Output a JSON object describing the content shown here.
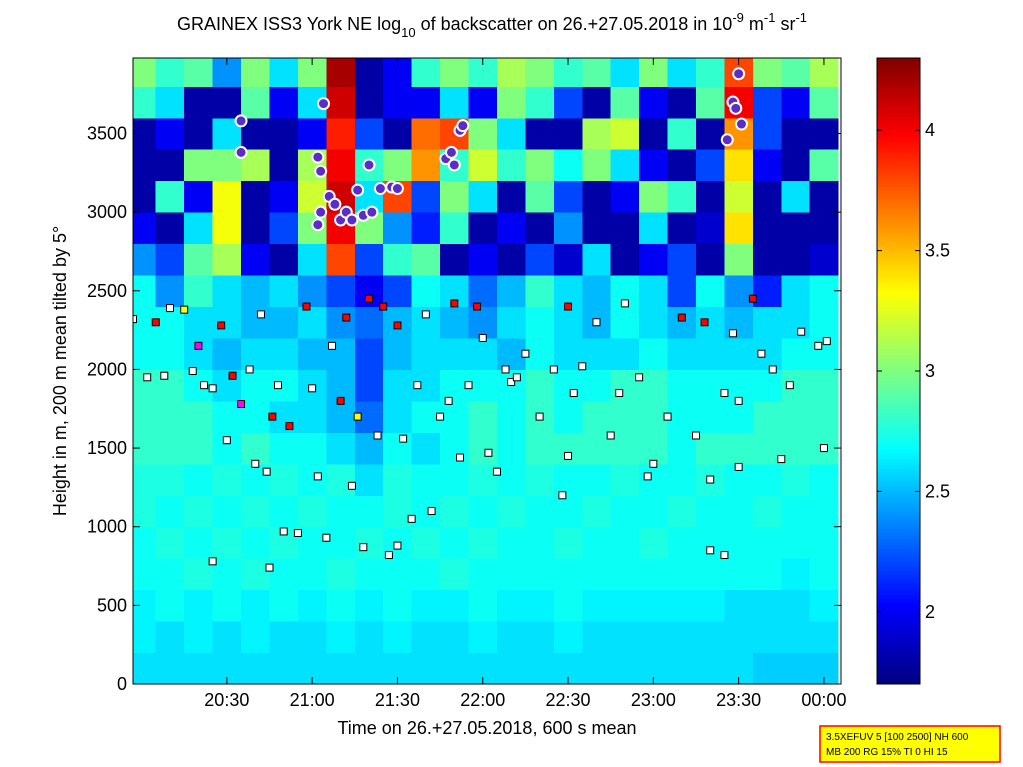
{
  "chart_data": {
    "type": "heatmap",
    "title_parts": [
      "GRAINEX ISS3 York NE log",
      "10",
      " of backscatter on 26.+27.05.2018 in 10",
      "-9",
      " m",
      "-1",
      " sr",
      "-1"
    ],
    "xlabel": "Time on 26.+27.05.2018, 600 s mean",
    "ylabel": "Height in m, 200 m mean tilted by 5°",
    "info": [
      "3.5XEFUV 5 [100 2500] NH 600",
      "MB 200 RG 15% TI 0 HI 15"
    ],
    "xlim": [
      -3,
      246
    ],
    "ylim": [
      0,
      3980
    ],
    "xticks": [
      {
        "value": 30,
        "label": "20:30"
      },
      {
        "value": 60,
        "label": "21:00"
      },
      {
        "value": 90,
        "label": "21:30"
      },
      {
        "value": 120,
        "label": "22:00"
      },
      {
        "value": 150,
        "label": "22:30"
      },
      {
        "value": 180,
        "label": "23:00"
      },
      {
        "value": 210,
        "label": "23:30"
      },
      {
        "value": 240,
        "label": "00:00"
      }
    ],
    "yticks": [
      0,
      500,
      1000,
      1500,
      2000,
      2500,
      3000,
      3500
    ],
    "clim": [
      1.7,
      4.3
    ],
    "cticks": [
      2,
      2.5,
      3,
      3.5,
      4
    ],
    "colormap": "jet",
    "x": [
      0,
      10,
      20,
      30,
      40,
      50,
      60,
      70,
      80,
      90,
      100,
      110,
      120,
      130,
      140,
      150,
      160,
      170,
      180,
      190,
      200,
      210,
      220,
      230,
      240
    ],
    "y": [
      100,
      300,
      500,
      700,
      900,
      1100,
      1300,
      1500,
      1700,
      1900,
      2100,
      2300,
      2500,
      2700,
      2900,
      3100,
      3300,
      3500,
      3700,
      3900
    ],
    "z": [
      [
        2.6,
        2.6,
        2.6,
        2.6,
        2.6,
        2.6,
        2.6,
        2.6,
        2.6,
        2.6,
        2.6,
        2.6,
        2.6,
        2.6,
        2.6,
        2.6,
        2.6,
        2.6,
        2.6,
        2.6,
        2.6,
        2.6,
        2.55,
        2.55,
        2.55
      ],
      [
        2.65,
        2.6,
        2.65,
        2.6,
        2.65,
        2.6,
        2.6,
        2.65,
        2.6,
        2.65,
        2.6,
        2.6,
        2.65,
        2.6,
        2.6,
        2.65,
        2.6,
        2.6,
        2.6,
        2.6,
        2.6,
        2.6,
        2.6,
        2.6,
        2.6
      ],
      [
        2.65,
        2.7,
        2.65,
        2.7,
        2.65,
        2.7,
        2.65,
        2.7,
        2.65,
        2.7,
        2.65,
        2.65,
        2.7,
        2.65,
        2.65,
        2.7,
        2.65,
        2.65,
        2.65,
        2.65,
        2.65,
        2.6,
        2.6,
        2.6,
        2.65
      ],
      [
        2.7,
        2.7,
        2.75,
        2.7,
        2.75,
        2.7,
        2.7,
        2.75,
        2.7,
        2.7,
        2.7,
        2.75,
        2.7,
        2.7,
        2.7,
        2.7,
        2.7,
        2.7,
        2.7,
        2.7,
        2.7,
        2.7,
        2.7,
        2.65,
        2.7
      ],
      [
        2.7,
        2.75,
        2.7,
        2.75,
        2.7,
        2.75,
        2.7,
        2.7,
        2.75,
        2.7,
        2.75,
        2.7,
        2.75,
        2.7,
        2.7,
        2.75,
        2.7,
        2.7,
        2.75,
        2.7,
        2.7,
        2.7,
        2.7,
        2.7,
        2.7
      ],
      [
        2.75,
        2.7,
        2.75,
        2.7,
        2.75,
        2.7,
        2.75,
        2.7,
        2.7,
        2.75,
        2.7,
        2.75,
        2.7,
        2.75,
        2.7,
        2.7,
        2.75,
        2.7,
        2.7,
        2.75,
        2.7,
        2.7,
        2.75,
        2.7,
        2.7
      ],
      [
        2.75,
        2.75,
        2.7,
        2.75,
        2.7,
        2.75,
        2.7,
        2.75,
        2.6,
        2.75,
        2.7,
        2.7,
        2.75,
        2.7,
        2.75,
        2.7,
        2.7,
        2.75,
        2.7,
        2.7,
        2.75,
        2.7,
        2.7,
        2.75,
        2.7
      ],
      [
        2.8,
        2.8,
        2.8,
        2.7,
        2.8,
        2.7,
        2.7,
        2.6,
        2.5,
        2.7,
        2.6,
        2.7,
        2.8,
        2.7,
        2.8,
        2.8,
        2.8,
        2.8,
        2.8,
        2.7,
        2.8,
        2.8,
        2.8,
        2.8,
        2.8
      ],
      [
        2.8,
        2.8,
        2.8,
        2.7,
        2.7,
        2.6,
        2.6,
        2.5,
        2.3,
        2.6,
        2.7,
        2.7,
        2.8,
        2.7,
        2.8,
        2.7,
        2.8,
        2.8,
        2.8,
        2.7,
        2.7,
        2.7,
        2.8,
        2.8,
        2.8
      ],
      [
        2.8,
        2.8,
        2.7,
        2.6,
        2.7,
        2.7,
        2.6,
        2.5,
        2.2,
        2.6,
        2.6,
        2.7,
        2.7,
        2.7,
        2.8,
        2.7,
        2.7,
        2.8,
        2.8,
        2.7,
        2.7,
        2.7,
        2.7,
        2.8,
        2.8
      ],
      [
        2.7,
        2.7,
        2.6,
        2.5,
        2.6,
        2.6,
        2.5,
        2.5,
        2.2,
        2.5,
        2.6,
        2.6,
        2.6,
        2.5,
        2.7,
        2.6,
        2.6,
        2.6,
        2.7,
        2.6,
        2.6,
        2.6,
        2.6,
        2.7,
        2.7
      ],
      [
        2.7,
        2.7,
        2.6,
        2.6,
        2.5,
        2.5,
        2.6,
        2.4,
        2.3,
        2.5,
        2.6,
        2.5,
        2.4,
        2.6,
        2.7,
        2.6,
        2.5,
        2.7,
        2.6,
        2.5,
        2.6,
        2.5,
        2.6,
        2.6,
        2.7
      ],
      [
        2.7,
        2.4,
        2.8,
        2.6,
        2.5,
        2.6,
        2.4,
        2.2,
        2.0,
        2.2,
        2.7,
        2.6,
        2.3,
        2.5,
        2.8,
        2.6,
        2.5,
        2.7,
        2.6,
        2.2,
        2.7,
        2.4,
        2.1,
        2.6,
        2.7
      ],
      [
        2.4,
        2.2,
        2.9,
        3.1,
        2.0,
        1.8,
        2.6,
        3.8,
        2.2,
        2.8,
        2.9,
        1.8,
        2.0,
        1.8,
        2.2,
        1.9,
        2.6,
        1.8,
        2.0,
        2.2,
        1.8,
        3.0,
        1.8,
        1.8,
        1.9
      ],
      [
        2.0,
        1.8,
        2.6,
        3.3,
        1.8,
        2.2,
        3.0,
        4.0,
        3.0,
        2.4,
        2.1,
        2.8,
        1.8,
        2.0,
        1.8,
        2.4,
        1.8,
        1.8,
        2.6,
        1.8,
        1.9,
        3.4,
        1.8,
        1.8,
        1.8
      ],
      [
        1.8,
        2.8,
        2.0,
        3.3,
        1.8,
        2.0,
        3.2,
        4.1,
        2.6,
        3.8,
        2.2,
        3.0,
        2.6,
        1.8,
        2.9,
        2.2,
        1.8,
        2.0,
        3.0,
        2.8,
        1.8,
        3.2,
        1.8,
        2.6,
        1.8
      ],
      [
        1.8,
        1.8,
        3.0,
        3.0,
        3.1,
        1.8,
        3.1,
        4.0,
        2.8,
        3.0,
        3.6,
        2.8,
        3.2,
        2.8,
        3.0,
        2.7,
        3.0,
        2.6,
        2.0,
        1.8,
        2.2,
        3.4,
        2.0,
        1.8,
        2.9
      ],
      [
        1.8,
        2.0,
        1.8,
        2.6,
        1.8,
        1.8,
        2.0,
        3.9,
        2.2,
        1.8,
        3.7,
        3.8,
        3.0,
        2.6,
        1.8,
        1.8,
        3.1,
        3.2,
        1.8,
        2.8,
        1.8,
        3.6,
        2.2,
        1.8,
        1.8
      ],
      [
        2.8,
        2.6,
        1.8,
        1.8,
        2.9,
        2.0,
        2.6,
        4.1,
        1.8,
        2.0,
        2.0,
        2.6,
        2.0,
        3.0,
        2.8,
        2.2,
        1.8,
        2.9,
        2.0,
        1.8,
        2.9,
        4.0,
        2.2,
        2.0,
        2.9
      ],
      [
        3.0,
        2.8,
        2.9,
        2.4,
        3.0,
        2.6,
        3.0,
        4.2,
        1.8,
        2.0,
        2.8,
        3.0,
        2.8,
        3.1,
        3.0,
        2.8,
        2.9,
        2.6,
        3.0,
        2.6,
        2.8,
        3.8,
        3.0,
        2.9,
        3.1
      ]
    ],
    "squares": {
      "x": [
        -3,
        2,
        5,
        8,
        10,
        15,
        18,
        20,
        22,
        25,
        28,
        30,
        32,
        35,
        38,
        40,
        42,
        44,
        46,
        48,
        50,
        52,
        55,
        58,
        60,
        62,
        65,
        67,
        70,
        72,
        74,
        76,
        78,
        80,
        83,
        85,
        87,
        90,
        92,
        95,
        97,
        100,
        102,
        105,
        108,
        110,
        112,
        115,
        118,
        120,
        122,
        125,
        128,
        130,
        132,
        135,
        140,
        145,
        148,
        150,
        152,
        155,
        160,
        165,
        168,
        170,
        175,
        178,
        180,
        185,
        190,
        195,
        198,
        200,
        205,
        208,
        210,
        215,
        218,
        222,
        228,
        232,
        238,
        241,
        200,
        205,
        90,
        25,
        45,
        150,
        210,
        225,
        240
      ],
      "y": [
        2320,
        1950,
        2300,
        1960,
        2390,
        2380,
        1990,
        2150,
        1900,
        1880,
        2280,
        1550,
        1960,
        1780,
        2000,
        1400,
        2350,
        1350,
        1700,
        1900,
        970,
        1640,
        960,
        2400,
        1880,
        1320,
        930,
        2150,
        1800,
        2330,
        1260,
        1700,
        870,
        2450,
        1580,
        2400,
        820,
        2280,
        1560,
        1050,
        1900,
        2350,
        1100,
        1700,
        1800,
        2420,
        1440,
        1900,
        2400,
        2200,
        1470,
        1350,
        2000,
        1920,
        1950,
        2100,
        1700,
        2000,
        1200,
        2400,
        1850,
        2020,
        2300,
        1580,
        1850,
        2420,
        1950,
        1320,
        1400,
        1700,
        2330,
        1580,
        2300,
        1300,
        1850,
        2230,
        1800,
        2450,
        2100,
        2000,
        1900,
        2240,
        2150,
        2180,
        850,
        820,
        880,
        780,
        740,
        1450,
        1380,
        1430,
        1500
      ],
      "colors": [
        "#ffffff",
        "#ffffff",
        "#ff0000",
        "#ffffff",
        "#ffffff",
        "#ffff00",
        "#ffffff",
        "#ff00ff",
        "#ffffff",
        "#ffffff",
        "#ff0000",
        "#ffffff",
        "#ff0000",
        "#ff00ff",
        "#ffffff",
        "#ffffff",
        "#ffffff",
        "#ffffff",
        "#ff0000",
        "#ffffff",
        "#ffffff",
        "#ff0000",
        "#ffffff",
        "#ff0000",
        "#ffffff",
        "#ffffff",
        "#ffffff",
        "#ffffff",
        "#ff0000",
        "#ff0000",
        "#ffffff",
        "#ffff00",
        "#ffffff",
        "#ff0000",
        "#ffffff",
        "#ff0000",
        "#ffffff",
        "#ff0000",
        "#ffffff",
        "#ffffff",
        "#ffffff",
        "#ffffff",
        "#ffffff",
        "#ffffff",
        "#ffffff",
        "#ff0000",
        "#ffffff",
        "#ffffff",
        "#ff0000",
        "#ffffff",
        "#ffffff",
        "#ffffff",
        "#ffffff",
        "#ffffff",
        "#ffffff",
        "#ffffff",
        "#ffffff",
        "#ffffff",
        "#ffffff",
        "#ff0000",
        "#ffffff",
        "#ffffff",
        "#ffffff",
        "#ffffff",
        "#ffffff",
        "#ffffff",
        "#ffffff",
        "#ffffff",
        "#ffffff",
        "#ffffff",
        "#ff0000",
        "#ffffff",
        "#ff0000",
        "#ffffff",
        "#ffffff",
        "#ffffff",
        "#ffffff",
        "#ff0000",
        "#ffffff",
        "#ffffff",
        "#ffffff",
        "#ffffff",
        "#ffffff",
        "#ffffff",
        "#ffffff",
        "#ffffff",
        "#ffffff",
        "#ffffff",
        "#ffffff",
        "#ffffff",
        "#ffffff",
        "#ffffff",
        "#ffffff"
      ]
    },
    "circles": {
      "x": [
        35,
        35,
        62,
        64,
        63,
        62,
        63,
        66,
        68,
        70,
        72,
        74,
        76,
        78,
        80,
        81,
        84,
        88,
        90,
        107,
        109,
        112,
        113,
        110,
        206,
        208,
        209,
        211,
        210
      ],
      "y": [
        3580,
        3380,
        3350,
        3690,
        3260,
        2920,
        3000,
        3100,
        3050,
        2950,
        3000,
        2950,
        3140,
        2980,
        3300,
        3000,
        3150,
        3160,
        3150,
        3340,
        3380,
        3520,
        3550,
        3300,
        3460,
        3700,
        3660,
        3560,
        3880
      ],
      "color": "#5a2cc8"
    }
  }
}
